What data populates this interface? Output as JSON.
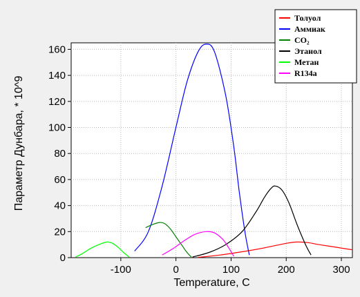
{
  "chart_data": {
    "type": "line",
    "xlabel": "Temperature, C",
    "ylabel": "Параметр Дунбара,  * 10^9",
    "xlim": [
      -190,
      320
    ],
    "ylim": [
      0,
      165
    ],
    "xticks": [
      -100,
      0,
      100,
      200,
      300
    ],
    "yticks": [
      0,
      20,
      40,
      60,
      80,
      100,
      120,
      140,
      160
    ],
    "grid": true,
    "legend_position": "top-right",
    "series": [
      {
        "name": "Толуол",
        "color": "#ff0000",
        "points": [
          [
            40,
            0.2
          ],
          [
            80,
            2
          ],
          [
            120,
            4.5
          ],
          [
            160,
            7.5
          ],
          [
            200,
            11
          ],
          [
            220,
            12
          ],
          [
            240,
            11.5
          ],
          [
            260,
            10
          ],
          [
            290,
            8
          ],
          [
            320,
            6
          ]
        ]
      },
      {
        "name": "Аммиак",
        "color": "#0000ff",
        "points": [
          [
            -75,
            5
          ],
          [
            -50,
            20
          ],
          [
            -25,
            55
          ],
          [
            0,
            100
          ],
          [
            20,
            135
          ],
          [
            40,
            158
          ],
          [
            55,
            164
          ],
          [
            70,
            158
          ],
          [
            90,
            125
          ],
          [
            105,
            85
          ],
          [
            115,
            50
          ],
          [
            125,
            20
          ],
          [
            133,
            2
          ]
        ]
      },
      {
        "name": "CO₂",
        "color": "#008000",
        "points": [
          [
            -55,
            23
          ],
          [
            -45,
            25
          ],
          [
            -30,
            27
          ],
          [
            -20,
            26
          ],
          [
            -10,
            22
          ],
          [
            0,
            16
          ],
          [
            10,
            10
          ],
          [
            20,
            4
          ],
          [
            28,
            0.5
          ]
        ]
      },
      {
        "name": "Этанол",
        "color": "#000000",
        "points": [
          [
            30,
            0.5
          ],
          [
            60,
            4
          ],
          [
            90,
            10
          ],
          [
            120,
            20
          ],
          [
            145,
            35
          ],
          [
            160,
            46
          ],
          [
            172,
            53
          ],
          [
            180,
            55
          ],
          [
            192,
            52
          ],
          [
            205,
            42
          ],
          [
            220,
            25
          ],
          [
            235,
            10
          ],
          [
            245,
            2
          ]
        ]
      },
      {
        "name": "Метан",
        "color": "#00ff00",
        "points": [
          [
            -182,
            0.5
          ],
          [
            -170,
            3
          ],
          [
            -155,
            7
          ],
          [
            -140,
            10
          ],
          [
            -125,
            12
          ],
          [
            -115,
            11
          ],
          [
            -105,
            8
          ],
          [
            -95,
            4
          ],
          [
            -85,
            0.5
          ]
        ]
      },
      {
        "name": "R134a",
        "color": "#ff00ff",
        "points": [
          [
            -25,
            2
          ],
          [
            -5,
            7
          ],
          [
            15,
            13
          ],
          [
            35,
            18
          ],
          [
            55,
            20
          ],
          [
            70,
            19
          ],
          [
            85,
            14
          ],
          [
            95,
            8
          ],
          [
            105,
            1
          ]
        ]
      }
    ]
  }
}
